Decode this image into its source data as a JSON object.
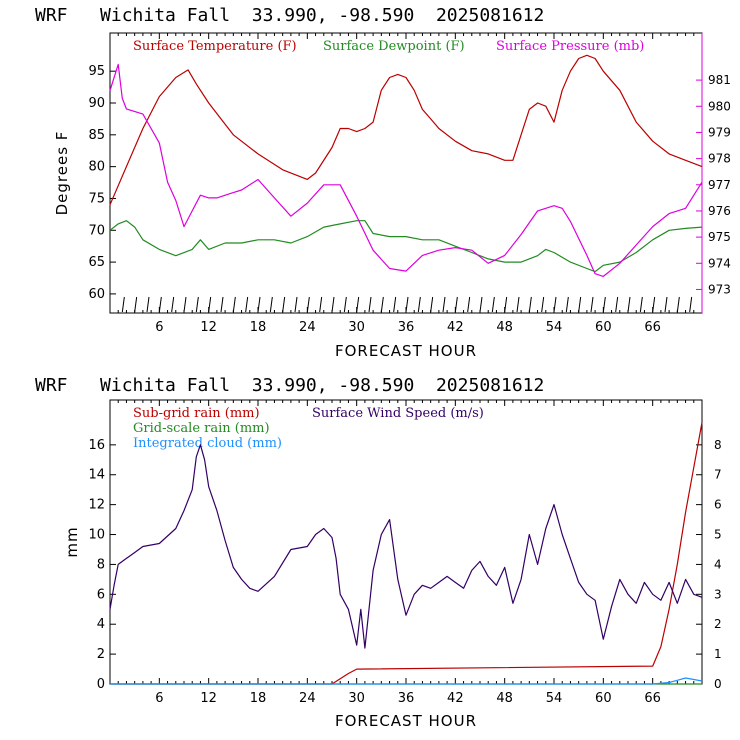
{
  "charts": [
    {
      "title": "WRF   Wichita Fall  33.990, -98.590  2025081612",
      "xlabel": "FORECAST HOUR",
      "ylabel_left": "Degrees F",
      "xticks": [
        "6",
        "12",
        "18",
        "24",
        "30",
        "36",
        "42",
        "48",
        "54",
        "60",
        "66"
      ],
      "yticks_left": [
        "60",
        "65",
        "70",
        "75",
        "80",
        "85",
        "90",
        "95"
      ],
      "yticks_right": [
        "973",
        "974",
        "975",
        "976",
        "977",
        "978",
        "979",
        "980",
        "981"
      ],
      "legend": [
        {
          "text": "Surface Temperature (F)",
          "color": "#bb0000"
        },
        {
          "text": "Surface Dewpoint (F)",
          "color": "#228b22"
        },
        {
          "text": "Surface Pressure (mb)",
          "color": "#dd00dd"
        }
      ]
    },
    {
      "title": "WRF   Wichita Fall  33.990, -98.590  2025081612",
      "xlabel": "FORECAST HOUR",
      "ylabel_left": "mm",
      "xticks": [
        "6",
        "12",
        "18",
        "24",
        "30",
        "36",
        "42",
        "48",
        "54",
        "60",
        "66"
      ],
      "yticks_left": [
        "0",
        "2",
        "4",
        "6",
        "8",
        "10",
        "12",
        "14",
        "16"
      ],
      "yticks_right": [
        "0",
        "1",
        "2",
        "3",
        "4",
        "5",
        "6",
        "7",
        "8"
      ],
      "legend": [
        {
          "text": "Sub-grid rain (mm)",
          "color": "#bb0000"
        },
        {
          "text": "Surface Wind Speed (m/s)",
          "color": "#330066"
        },
        {
          "text": "Grid-scale rain (mm)",
          "color": "#228b22"
        },
        {
          "text": "Integrated cloud (mm)",
          "color": "#1e90ff"
        }
      ]
    }
  ],
  "chart_data": [
    {
      "type": "line",
      "title": "WRF   Wichita Fall  33.990, -98.590  2025081612",
      "xlabel": "FORECAST HOUR",
      "ylabel": "Degrees F",
      "xlim": [
        0,
        72
      ],
      "ylim": [
        57,
        101
      ],
      "y2lim": [
        972.1,
        982.8
      ],
      "grid": false,
      "legend_position": "top",
      "wind_barbs": true,
      "series": [
        {
          "name": "Surface Temperature (F)",
          "color": "#bb0000",
          "axis": "left",
          "x": [
            0,
            2,
            4,
            6,
            8,
            9.5,
            10.5,
            12,
            15,
            18,
            21,
            24,
            25,
            27,
            28,
            29,
            30,
            31,
            32,
            33,
            34,
            35,
            36,
            37,
            38,
            39,
            40,
            42,
            44,
            46,
            48,
            49,
            50,
            51,
            52,
            53,
            54,
            55,
            56,
            57,
            58,
            59,
            60,
            62,
            64,
            66,
            68,
            70,
            72
          ],
          "y": [
            74,
            80,
            86,
            91,
            94,
            95.2,
            93,
            90,
            85,
            82,
            79.5,
            78,
            79,
            83,
            86,
            86,
            85.5,
            86,
            87,
            92,
            94,
            94.5,
            94,
            92,
            89,
            87.5,
            86,
            84,
            82.5,
            82,
            81,
            81,
            85,
            89,
            90,
            89.5,
            87,
            92,
            95,
            97,
            97.5,
            97,
            95,
            92,
            87,
            84,
            82,
            81,
            80
          ]
        },
        {
          "name": "Surface Dewpoint (F)",
          "color": "#228b22",
          "axis": "left",
          "x": [
            0,
            1,
            2,
            3,
            4,
            6,
            8,
            10,
            11,
            12,
            14,
            16,
            18,
            20,
            22,
            24,
            26,
            28,
            30,
            31,
            32,
            34,
            36,
            38,
            40,
            42,
            44,
            46,
            48,
            50,
            52,
            53,
            54,
            56,
            58,
            59,
            60,
            62,
            64,
            66,
            68,
            70,
            72
          ],
          "y": [
            70,
            71,
            71.5,
            70.5,
            68.5,
            67,
            66,
            67,
            68.5,
            67,
            68,
            68,
            68.5,
            68.5,
            68,
            69,
            70.5,
            71,
            71.5,
            71.5,
            69.5,
            69,
            69,
            68.5,
            68.5,
            67.5,
            66.5,
            65.5,
            65,
            65,
            66,
            67,
            66.5,
            65,
            64,
            63.5,
            64.5,
            65,
            66.5,
            68.5,
            70,
            70.3,
            70.5
          ]
        },
        {
          "name": "Surface Pressure (mb)",
          "color": "#dd00dd",
          "axis": "right",
          "x": [
            0,
            1,
            1.5,
            2,
            4,
            6,
            7,
            8,
            9,
            10,
            11,
            12,
            13,
            15,
            16,
            17,
            18,
            20,
            22,
            24,
            26,
            28,
            30,
            32,
            34,
            36,
            38,
            40,
            42,
            44,
            46,
            48,
            50,
            52,
            54,
            55,
            56,
            58,
            59,
            60,
            62,
            64,
            66,
            68,
            70,
            71,
            72
          ],
          "y": [
            980.6,
            981.6,
            980.3,
            979.9,
            979.7,
            978.6,
            977.1,
            976.4,
            975.4,
            976.0,
            976.6,
            976.5,
            976.5,
            976.7,
            976.8,
            977.0,
            977.2,
            976.5,
            975.8,
            976.3,
            977.0,
            977.0,
            975.8,
            974.5,
            973.8,
            973.7,
            974.3,
            974.5,
            974.6,
            974.5,
            974.0,
            974.3,
            975.1,
            976.0,
            976.2,
            976.1,
            975.6,
            974.3,
            973.6,
            973.5,
            974.0,
            974.7,
            975.4,
            975.9,
            976.1,
            976.6,
            977.1
          ]
        }
      ]
    },
    {
      "type": "line",
      "title": "WRF   Wichita Fall  33.990, -98.590  2025081612",
      "xlabel": "FORECAST HOUR",
      "ylabel": "mm",
      "xlim": [
        0,
        72
      ],
      "ylim": [
        0,
        19
      ],
      "y2lim": [
        0,
        9.5
      ],
      "grid": false,
      "legend_position": "top-left",
      "series": [
        {
          "name": "Sub-grid rain (mm)",
          "color": "#bb0000",
          "axis": "left",
          "x": [
            0,
            27,
            29,
            30,
            66,
            67,
            68,
            69,
            70,
            71,
            72
          ],
          "y": [
            0,
            0,
            0.7,
            1.0,
            1.2,
            2.5,
            5.0,
            8.0,
            11.5,
            14.5,
            17.5
          ]
        },
        {
          "name": "Grid-scale rain (mm)",
          "color": "#228b22",
          "axis": "left",
          "x": [
            0,
            72
          ],
          "y": [
            0,
            0
          ]
        },
        {
          "name": "Integrated cloud (mm)",
          "color": "#1e90ff",
          "axis": "left",
          "x": [
            0,
            66,
            68,
            69,
            70,
            71,
            72
          ],
          "y": [
            0,
            0,
            0.1,
            0.25,
            0.4,
            0.3,
            0.2
          ]
        },
        {
          "name": "Surface Wind Speed (m/s)",
          "color": "#330066",
          "axis": "right",
          "x": [
            0,
            0.5,
            1,
            2,
            3,
            4,
            6,
            8,
            9,
            10,
            10.5,
            11,
            11.5,
            12,
            13,
            14,
            15,
            16,
            17,
            18,
            20,
            22,
            24,
            25,
            26,
            27,
            27.5,
            28,
            29,
            30,
            30.5,
            31,
            32,
            33,
            34,
            35,
            36,
            37,
            38,
            39,
            40,
            41,
            42,
            43,
            44,
            45,
            46,
            47,
            48,
            49,
            50,
            51,
            52,
            53,
            54,
            55,
            56,
            57,
            58,
            59,
            60,
            61,
            62,
            63,
            64,
            65,
            66,
            67,
            68,
            69,
            70,
            71,
            72
          ],
          "y": [
            2.5,
            3.3,
            4.0,
            4.2,
            4.4,
            4.6,
            4.7,
            5.2,
            5.8,
            6.5,
            7.6,
            8.0,
            7.5,
            6.6,
            5.8,
            4.8,
            3.9,
            3.5,
            3.2,
            3.1,
            3.6,
            4.5,
            4.6,
            5.0,
            5.2,
            4.9,
            4.2,
            3.0,
            2.5,
            1.3,
            2.5,
            1.2,
            3.8,
            5.0,
            5.5,
            3.5,
            2.3,
            3.0,
            3.3,
            3.2,
            3.4,
            3.6,
            3.4,
            3.2,
            3.8,
            4.1,
            3.6,
            3.3,
            3.9,
            2.7,
            3.5,
            5.0,
            4.0,
            5.2,
            6.0,
            5.0,
            4.2,
            3.4,
            3.0,
            2.8,
            1.5,
            2.6,
            3.5,
            3.0,
            2.7,
            3.4,
            3.0,
            2.8,
            3.4,
            2.7,
            3.5,
            3.0,
            2.9
          ]
        }
      ]
    }
  ]
}
